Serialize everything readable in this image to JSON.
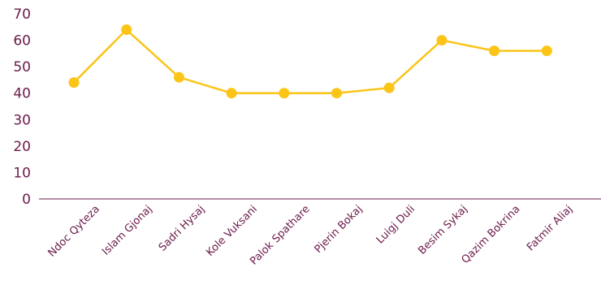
{
  "chart_data": {
    "type": "line",
    "title": "",
    "xlabel": "",
    "ylabel": "",
    "categories": [
      "Ndoc Qyteza",
      "Islam Gjonaj",
      "Sadri Hysaj",
      "Kole Vuksani",
      "Palok Spathare",
      "Pjerin Bokaj",
      "Luigj Duli",
      "Besim Sykaj",
      "Qazim Bokrina",
      "Fatmir Aliaj"
    ],
    "series": [
      {
        "values": [
          44,
          64,
          46,
          40,
          40,
          40,
          42,
          60,
          56,
          56
        ]
      }
    ],
    "ylim": [
      0,
      70
    ],
    "yticks": [
      0,
      10,
      20,
      30,
      40,
      50,
      60,
      70
    ],
    "grid": false,
    "legend": "none",
    "colors": {
      "line": "#fbc416",
      "text": "#6b1a4a",
      "axis": "#6b1a4a"
    }
  }
}
